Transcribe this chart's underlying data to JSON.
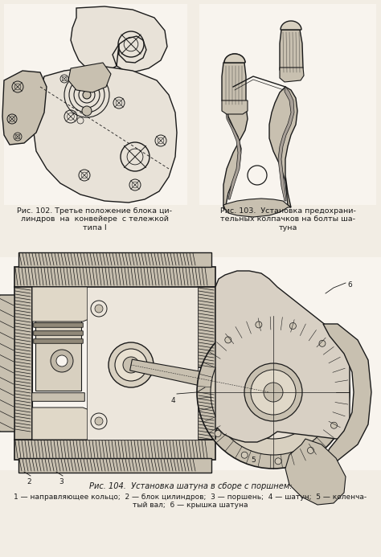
{
  "bg_color": "#f2ede4",
  "line_color": "#1a1a1a",
  "fill_light": "#e8e2d8",
  "fill_mid": "#c8c0b0",
  "fill_dark": "#908878",
  "hatch_color": "#555050",
  "white": "#f8f4ee",
  "fig_width": 4.74,
  "fig_height": 6.93,
  "dpi": 100,
  "text_color": "#1a1a1a",
  "caption_fs": 6.8,
  "label_fs": 6.5,
  "title_102": "Рис. 102. Третье положение блока ци-\nлиндров  на  конвейере  с тележкой\nтипа I",
  "title_103": "Рис. 103.  Установка предохрани-\nтельных колпачков на болты ша-\nтуна",
  "title_104": "Рис. 104.  Установка шатуна в сборе с поршнем:",
  "caption_104": "1 — направляющее кольцо;  2 — блок цилиндров;  3 — поршень;  4 — шатун;  5 — коленча-\nтый вал;  6 — крышка шатуна"
}
